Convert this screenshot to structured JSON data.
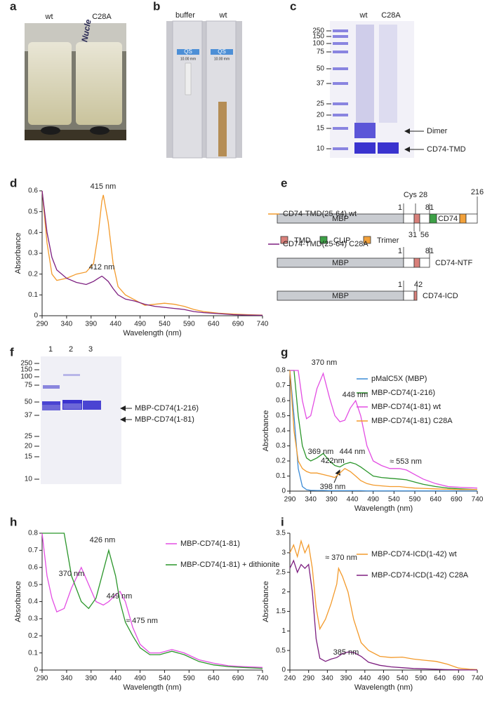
{
  "panels": {
    "a": {
      "label": "a",
      "texts": [
        "wt",
        "C28A",
        "Nucle"
      ]
    },
    "b": {
      "label": "b",
      "texts": [
        "buffer",
        "wt",
        "QS",
        "10.00 mm",
        "QS",
        "10.00 mm"
      ]
    },
    "c": {
      "label": "c",
      "lanes": [
        "wt",
        "C28A"
      ],
      "markers": [
        250,
        150,
        100,
        75,
        50,
        37,
        25,
        20,
        15,
        10
      ],
      "arrows": [
        "Dimer",
        "CD74-TMD"
      ]
    },
    "e": {
      "label": "e",
      "rows": [
        {
          "domain": "MBP",
          "labels": [
            "Cys 28",
            "1",
            "81",
            "216",
            "31",
            "56"
          ],
          "inner": "CD74"
        },
        {
          "domain": "MBP",
          "labels": [
            "1",
            "81"
          ],
          "name": "CD74-NTF"
        },
        {
          "domain": "MBP",
          "labels": [
            "1",
            "42"
          ],
          "name": "CD74-ICD"
        }
      ],
      "legend": [
        "TMD",
        "CLIP",
        "Trimer"
      ]
    },
    "f": {
      "label": "f",
      "lanes": [
        "1",
        "2",
        "3"
      ],
      "markers": [
        250,
        150,
        100,
        75,
        50,
        37,
        25,
        20,
        15,
        10
      ],
      "arrows": [
        "MBP-CD74(1-216)",
        "MBP-CD74(1-81)"
      ]
    }
  },
  "chart_data": [
    {
      "label": "d",
      "type": "line",
      "xlabel": "Wavelength (nm)",
      "ylabel": "Absorbance",
      "x": [
        290,
        300,
        310,
        320,
        340,
        360,
        380,
        395,
        405,
        412,
        415,
        425,
        435,
        445,
        460,
        480,
        500,
        520,
        540,
        560,
        580,
        600,
        620,
        650,
        680,
        710,
        740
      ],
      "series": [
        {
          "name": "CD74-TMD(25-64) wt",
          "color": "#f39a2b",
          "values": [
            0.6,
            0.35,
            0.2,
            0.17,
            0.18,
            0.2,
            0.21,
            0.25,
            0.4,
            0.55,
            0.58,
            0.45,
            0.25,
            0.14,
            0.1,
            0.075,
            0.05,
            0.055,
            0.06,
            0.055,
            0.045,
            0.03,
            0.02,
            0.012,
            0.008,
            0.005,
            0.003
          ]
        },
        {
          "name": "CD74-TMD(25-64) C28A",
          "color": "#7d1f80",
          "values": [
            0.6,
            0.4,
            0.28,
            0.22,
            0.18,
            0.16,
            0.15,
            0.165,
            0.18,
            0.19,
            0.185,
            0.165,
            0.13,
            0.1,
            0.08,
            0.07,
            0.055,
            0.045,
            0.04,
            0.035,
            0.03,
            0.02,
            0.015,
            0.01,
            0.005,
            0.003,
            0.002
          ]
        }
      ],
      "xlim": [
        290,
        740
      ],
      "xticks": [
        290,
        340,
        390,
        440,
        490,
        540,
        590,
        640,
        690,
        740
      ],
      "ylim": [
        0,
        0.6
      ],
      "yticks": [
        0,
        0.1,
        0.2,
        0.3,
        0.4,
        0.5,
        0.6
      ],
      "annotations": [
        "415 nm",
        "412 nm"
      ]
    },
    {
      "label": "g",
      "type": "line",
      "xlabel": "Wavelength (nm)",
      "ylabel": "Absorbance",
      "x": [
        290,
        300,
        310,
        320,
        330,
        340,
        355,
        370,
        385,
        398,
        410,
        422,
        435,
        448,
        460,
        475,
        490,
        510,
        530,
        553,
        570,
        590,
        610,
        640,
        670,
        700,
        740
      ],
      "series": [
        {
          "name": "pMalC5X (MBP)",
          "color": "#3b8bd6",
          "values": [
            0.8,
            0.5,
            0.15,
            0.03,
            0.01,
            0.005,
            0.004,
            0.004,
            0.003,
            0.003,
            0.003,
            0.003,
            0.003,
            0.003,
            0.003,
            0.002,
            0.002,
            0.002,
            0.002,
            0.002,
            0.002,
            0.002,
            0.002,
            0.002,
            0.002,
            0.002,
            0.002
          ]
        },
        {
          "name": "MBP-CD74(1-216)",
          "color": "#2b962b",
          "values": [
            0.8,
            0.8,
            0.5,
            0.3,
            0.22,
            0.2,
            0.22,
            0.25,
            0.2,
            0.17,
            0.16,
            0.18,
            0.19,
            0.18,
            0.16,
            0.13,
            0.1,
            0.09,
            0.085,
            0.08,
            0.075,
            0.06,
            0.045,
            0.03,
            0.02,
            0.015,
            0.01
          ]
        },
        {
          "name": "MBP-CD74(1-81) wt",
          "color": "#e34de3",
          "values": [
            0.8,
            0.8,
            0.8,
            0.6,
            0.48,
            0.5,
            0.68,
            0.78,
            0.62,
            0.5,
            0.46,
            0.47,
            0.55,
            0.6,
            0.5,
            0.3,
            0.2,
            0.17,
            0.15,
            0.15,
            0.14,
            0.11,
            0.08,
            0.05,
            0.03,
            0.025,
            0.02
          ]
        },
        {
          "name": "MBP-CD74(1-81) C28A",
          "color": "#f39a2b",
          "values": [
            0.8,
            0.4,
            0.2,
            0.15,
            0.13,
            0.12,
            0.12,
            0.11,
            0.1,
            0.09,
            0.12,
            0.15,
            0.13,
            0.1,
            0.07,
            0.05,
            0.04,
            0.035,
            0.03,
            0.03,
            0.025,
            0.02,
            0.018,
            0.015,
            0.012,
            0.01,
            0.01
          ]
        }
      ],
      "xlim": [
        290,
        740
      ],
      "xticks": [
        290,
        340,
        390,
        440,
        490,
        540,
        590,
        640,
        690,
        740
      ],
      "ylim": [
        0,
        0.8
      ],
      "yticks": [
        0,
        0.1,
        0.2,
        0.3,
        0.4,
        0.5,
        0.6,
        0.7,
        0.8
      ],
      "annotations": [
        "370 nm",
        "448 nm",
        "369 nm",
        "444 nm",
        "422nm",
        "≈ 553 nm",
        "398 nm"
      ]
    },
    {
      "label": "h",
      "type": "line",
      "xlabel": "Wavelength (nm)",
      "ylabel": "Absorbance",
      "x": [
        290,
        300,
        310,
        320,
        335,
        350,
        370,
        385,
        400,
        415,
        426,
        440,
        449,
        460,
        475,
        490,
        510,
        530,
        555,
        580,
        610,
        640,
        670,
        700,
        740
      ],
      "series": [
        {
          "name": "MBP-CD74(1-81)",
          "color": "#e34de3",
          "values": [
            0.8,
            0.55,
            0.42,
            0.34,
            0.36,
            0.48,
            0.6,
            0.5,
            0.4,
            0.38,
            0.4,
            0.44,
            0.46,
            0.4,
            0.25,
            0.15,
            0.1,
            0.1,
            0.12,
            0.1,
            0.06,
            0.04,
            0.025,
            0.02,
            0.015
          ]
        },
        {
          "name": "MBP-CD74(1-81) + dithionite",
          "color": "#2b962b",
          "values": [
            0.8,
            0.8,
            0.8,
            0.8,
            0.8,
            0.55,
            0.4,
            0.36,
            0.42,
            0.58,
            0.7,
            0.55,
            0.4,
            0.28,
            0.2,
            0.13,
            0.09,
            0.09,
            0.11,
            0.09,
            0.05,
            0.03,
            0.02,
            0.015,
            0.01
          ]
        }
      ],
      "xlim": [
        290,
        740
      ],
      "xticks": [
        290,
        340,
        390,
        440,
        490,
        540,
        590,
        640,
        690,
        740
      ],
      "ylim": [
        0,
        0.8
      ],
      "yticks": [
        0,
        0.1,
        0.2,
        0.3,
        0.4,
        0.5,
        0.6,
        0.7,
        0.8
      ],
      "annotations": [
        "370 nm",
        "426 nm",
        "449 nm",
        "≈ 475 nm"
      ]
    },
    {
      "label": "i",
      "type": "line",
      "xlabel": "Wavelength (nm)",
      "ylabel": "Absorbance",
      "x": [
        240,
        250,
        260,
        270,
        280,
        290,
        300,
        310,
        320,
        335,
        350,
        365,
        370,
        380,
        395,
        410,
        430,
        450,
        480,
        510,
        540,
        570,
        600,
        630,
        660,
        690,
        720,
        740
      ],
      "series": [
        {
          "name": "MBP-CD74-ICD(1-42) wt",
          "color": "#f39a2b",
          "values": [
            3.0,
            3.2,
            2.9,
            3.3,
            3.0,
            3.2,
            2.6,
            1.6,
            1.05,
            1.3,
            1.7,
            2.2,
            2.6,
            2.4,
            2.0,
            1.3,
            0.7,
            0.5,
            0.35,
            0.32,
            0.33,
            0.28,
            0.25,
            0.22,
            0.15,
            0.05,
            0.02,
            0.01
          ]
        },
        {
          "name": "MBP-CD74-ICD(1-42) C28A",
          "color": "#7d1f80",
          "values": [
            2.6,
            2.8,
            2.5,
            2.7,
            2.6,
            2.7,
            2.0,
            0.8,
            0.3,
            0.22,
            0.28,
            0.32,
            0.35,
            0.42,
            0.46,
            0.45,
            0.35,
            0.2,
            0.12,
            0.08,
            0.06,
            0.04,
            0.03,
            0.02,
            0.01,
            0.005,
            0.002,
            0.001
          ]
        }
      ],
      "xlim": [
        240,
        740
      ],
      "xticks": [
        240,
        290,
        340,
        390,
        440,
        490,
        540,
        590,
        640,
        690,
        740
      ],
      "ylim": [
        0,
        3.5
      ],
      "yticks": [
        0,
        0.5,
        1,
        1.5,
        2,
        2.5,
        3,
        3.5
      ],
      "annotations": [
        "≈ 370 nm",
        "385 nm"
      ]
    }
  ]
}
